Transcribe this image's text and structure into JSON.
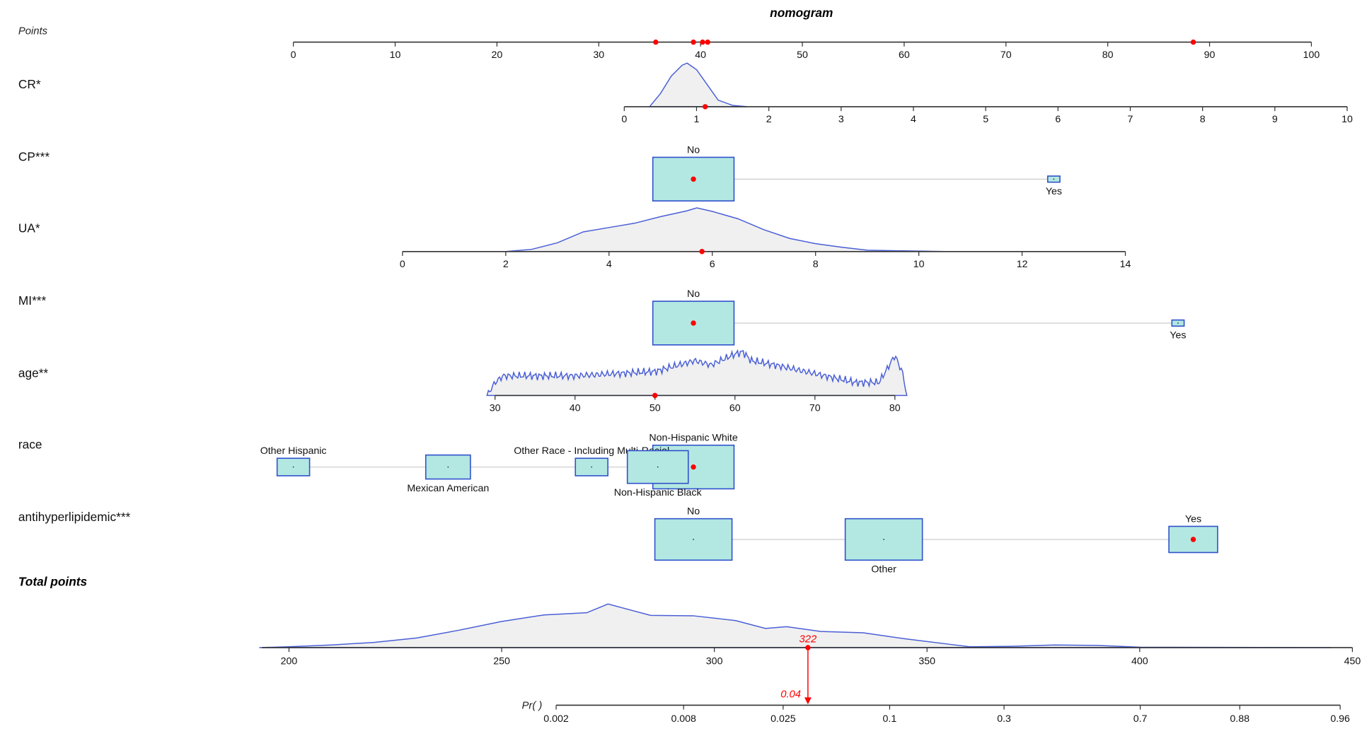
{
  "chart_data": {
    "type": "nomogram",
    "title": "nomogram",
    "colors": {
      "density_line": "#4a5fd6",
      "density_fill": "#f0f0f0",
      "box_fill": "#b3e8e2",
      "box_stroke": "#2f52cc",
      "marker": "#ff0000",
      "axis": "#333333"
    },
    "points_axis": {
      "label": "Points",
      "range": [
        0,
        100
      ],
      "ticks": [
        0,
        10,
        20,
        30,
        40,
        50,
        60,
        70,
        80,
        90,
        100
      ]
    },
    "variables": [
      {
        "name": "CR*",
        "type": "continuous",
        "range": [
          0,
          10
        ],
        "ticks": [
          0,
          1,
          2,
          3,
          4,
          5,
          6,
          7,
          8,
          9,
          10
        ],
        "selected": 1.12,
        "density": [
          [
            0.35,
            0
          ],
          [
            0.5,
            0.3
          ],
          [
            0.65,
            0.7
          ],
          [
            0.8,
            0.95
          ],
          [
            0.87,
            1
          ],
          [
            1.0,
            0.85
          ],
          [
            1.15,
            0.5
          ],
          [
            1.3,
            0.15
          ],
          [
            1.5,
            0.03
          ],
          [
            1.7,
            0
          ]
        ]
      },
      {
        "name": "CP***",
        "type": "categorical",
        "selected": "No",
        "levels": [
          {
            "label": "No",
            "points": 39.3,
            "weight": 1.0,
            "label_pos": "above"
          },
          {
            "label": "Yes",
            "points": 74.7,
            "weight": 0.08,
            "label_pos": "below"
          }
        ]
      },
      {
        "name": "UA*",
        "type": "continuous",
        "range": [
          0,
          14
        ],
        "ticks": [
          0,
          2,
          4,
          6,
          8,
          10,
          12,
          14
        ],
        "selected": 5.8,
        "density": [
          [
            2,
            0
          ],
          [
            2.5,
            0.05
          ],
          [
            3,
            0.2
          ],
          [
            3.5,
            0.45
          ],
          [
            4,
            0.55
          ],
          [
            4.5,
            0.65
          ],
          [
            5,
            0.8
          ],
          [
            5.5,
            0.93
          ],
          [
            5.7,
            1
          ],
          [
            6,
            0.92
          ],
          [
            6.5,
            0.75
          ],
          [
            7,
            0.5
          ],
          [
            7.5,
            0.3
          ],
          [
            8,
            0.18
          ],
          [
            8.5,
            0.1
          ],
          [
            9,
            0.03
          ],
          [
            10.5,
            0
          ]
        ]
      },
      {
        "name": "MI***",
        "type": "categorical",
        "selected": "No",
        "levels": [
          {
            "label": "No",
            "points": 39.3,
            "weight": 1.0,
            "label_pos": "above"
          },
          {
            "label": "Yes",
            "points": 86.9,
            "weight": 0.1,
            "label_pos": "below"
          }
        ]
      },
      {
        "name": "age**",
        "type": "continuous",
        "range": [
          30,
          80
        ],
        "ticks": [
          30,
          40,
          50,
          60,
          70,
          80
        ],
        "selected": 50,
        "density": [
          [
            29,
            0
          ],
          [
            30,
            0.3
          ],
          [
            31,
            0.45
          ],
          [
            35,
            0.45
          ],
          [
            40,
            0.45
          ],
          [
            45,
            0.5
          ],
          [
            50,
            0.55
          ],
          [
            55,
            0.8
          ],
          [
            57,
            0.7
          ],
          [
            60,
            0.95
          ],
          [
            61,
            1
          ],
          [
            62,
            0.8
          ],
          [
            65,
            0.7
          ],
          [
            70,
            0.5
          ],
          [
            75,
            0.3
          ],
          [
            78,
            0.3
          ],
          [
            79,
            0.6
          ],
          [
            80,
            0.92
          ],
          [
            81,
            0.5
          ],
          [
            81.5,
            0
          ]
        ]
      },
      {
        "name": "race",
        "type": "categorical",
        "selected": "Non-Hispanic White",
        "levels": [
          {
            "label": "Non-Hispanic White",
            "points": 39.3,
            "weight": 1.0,
            "label_pos": "above"
          },
          {
            "label": "Other Hispanic",
            "points": 0,
            "weight": 0.4,
            "label_pos": "above"
          },
          {
            "label": "Mexican American",
            "points": 15.2,
            "weight": 0.55,
            "label_pos": "below"
          },
          {
            "label": "Other Race - Including Multi-Racial",
            "points": 29.3,
            "weight": 0.4,
            "label_pos": "above"
          },
          {
            "label": "Non-Hispanic Black",
            "points": 35.8,
            "weight": 0.75,
            "label_pos": "below"
          }
        ]
      },
      {
        "name": "antihyperlipidemic***",
        "type": "categorical",
        "selected": "Yes",
        "levels": [
          {
            "label": "No",
            "points": 39.3,
            "weight": 0.95,
            "label_pos": "above"
          },
          {
            "label": "Other",
            "points": 58.0,
            "weight": 0.95,
            "label_pos": "below"
          },
          {
            "label": "Yes",
            "points": 88.4,
            "weight": 0.6,
            "label_pos": "above"
          }
        ]
      }
    ],
    "selected_points": [
      35.6,
      39.3,
      40.2,
      40.7,
      88.4
    ],
    "total_points": {
      "label": "Total points",
      "range": [
        200,
        450
      ],
      "ticks": [
        200,
        250,
        300,
        350,
        400,
        450
      ],
      "selected": 322,
      "selected_label": "322",
      "density": [
        [
          193,
          0
        ],
        [
          200,
          0.02
        ],
        [
          210,
          0.06
        ],
        [
          220,
          0.12
        ],
        [
          230,
          0.22
        ],
        [
          240,
          0.4
        ],
        [
          250,
          0.6
        ],
        [
          260,
          0.75
        ],
        [
          270,
          0.8
        ],
        [
          275,
          1
        ],
        [
          285,
          0.74
        ],
        [
          295,
          0.73
        ],
        [
          305,
          0.62
        ],
        [
          312,
          0.44
        ],
        [
          317,
          0.48
        ],
        [
          325,
          0.37
        ],
        [
          335,
          0.34
        ],
        [
          345,
          0.2
        ],
        [
          355,
          0.08
        ],
        [
          360,
          0.02
        ],
        [
          370,
          0.03
        ],
        [
          380,
          0.06
        ],
        [
          390,
          0.05
        ],
        [
          400,
          0.01
        ],
        [
          445,
          0
        ]
      ]
    },
    "probability_axis": {
      "label": "Pr( )",
      "ticks": [
        "0.002",
        "0.008",
        "0.025",
        "0.1",
        "0.3",
        "0.7",
        "0.88",
        "0.96"
      ],
      "selected": 0.04,
      "selected_label": "0.04"
    }
  }
}
